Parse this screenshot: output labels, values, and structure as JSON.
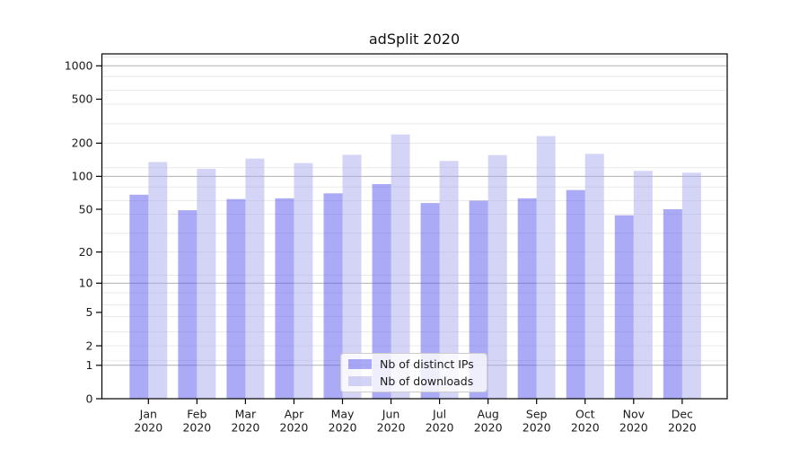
{
  "title": "adSplit 2020",
  "chart_data": {
    "type": "bar",
    "title": "adSplit 2020",
    "categories": [
      "Jan 2020",
      "Feb 2020",
      "Mar 2020",
      "Apr 2020",
      "May 2020",
      "Jun 2020",
      "Jul 2020",
      "Aug 2020",
      "Sep 2020",
      "Oct 2020",
      "Nov 2020",
      "Dec 2020"
    ],
    "series": [
      {
        "name": "Nb of distinct IPs",
        "color": "rgba(85,85,238,0.5)",
        "values": [
          68,
          49,
          62,
          63,
          70,
          85,
          57,
          60,
          63,
          75,
          44,
          50
        ]
      },
      {
        "name": "Nb of downloads",
        "color": "rgba(170,170,238,0.5)",
        "values": [
          135,
          117,
          145,
          132,
          157,
          240,
          138,
          156,
          232,
          160,
          112,
          108
        ]
      }
    ],
    "xlabel": "",
    "ylabel": "",
    "y_scale": "log1p",
    "y_ticks": [
      0,
      1,
      2,
      5,
      10,
      20,
      50,
      100,
      200,
      500,
      1000
    ],
    "ylim": [
      0,
      1280
    ],
    "grid": {
      "major_at": [
        1,
        10,
        100,
        1000
      ],
      "minor_multipliers": [
        1.2,
        2,
        3,
        4.5,
        6,
        8
      ]
    },
    "legend_position": "lower center, inside plot"
  },
  "legend": {
    "items": [
      {
        "label": "Nb of distinct IPs"
      },
      {
        "label": "Nb of downloads"
      }
    ]
  },
  "colors": {
    "bar_distinct_ips": "rgba(85,85,238,0.5)",
    "bar_downloads": "rgba(170,170,238,0.5)",
    "grid_major": "#b0b0b0",
    "grid_minor": "#e7e7e7",
    "axis_frame": "#000000",
    "text": "#1a1a1a",
    "legend_border": "#cccccc",
    "legend_background": "rgba(255,255,255,0.8)"
  }
}
